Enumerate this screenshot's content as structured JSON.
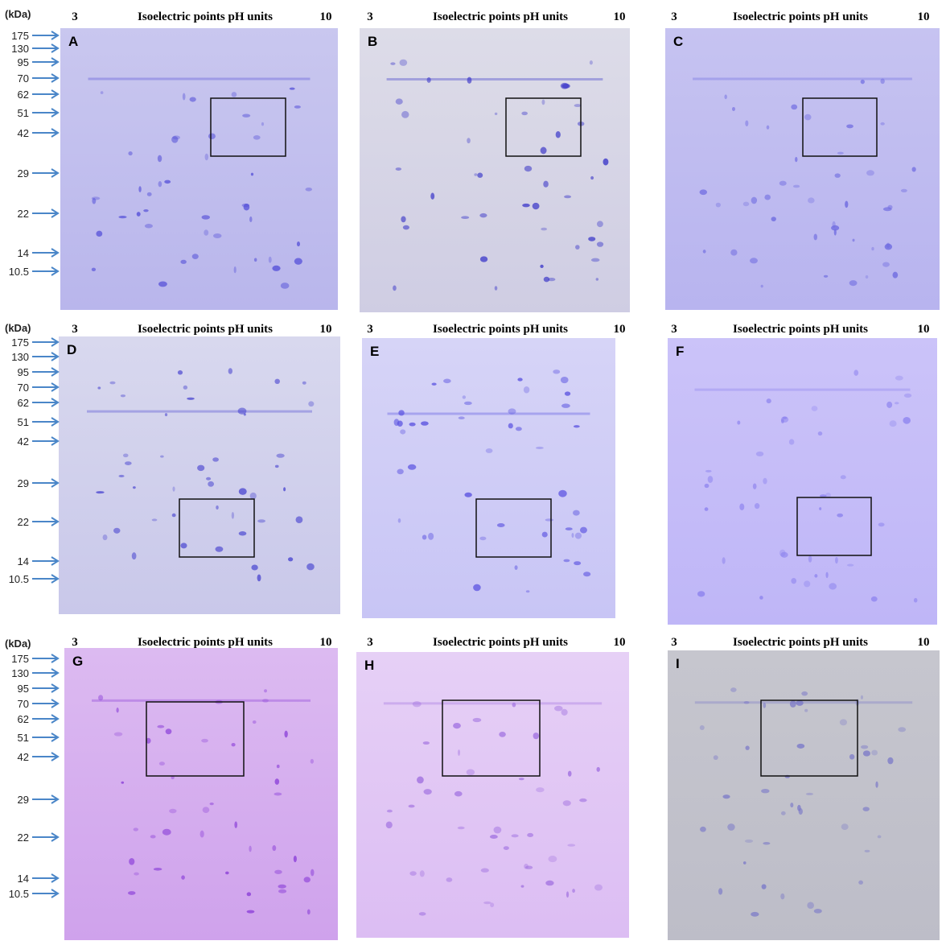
{
  "panels": [
    {
      "letter": "A",
      "ph_low": "3",
      "title": "Isoelectric points pH units",
      "ph_high": "10"
    },
    {
      "letter": "B",
      "ph_low": "3",
      "title": "Isoelectric points pH units",
      "ph_high": "10"
    },
    {
      "letter": "C",
      "ph_low": "3",
      "title": "Isoelectric points pH units",
      "ph_high": "10"
    },
    {
      "letter": "D",
      "ph_low": "3",
      "title": "Isoelectric points pH units",
      "ph_high": "10"
    },
    {
      "letter": "E",
      "ph_low": "3",
      "title": "Isoelectric points pH units",
      "ph_high": "10"
    },
    {
      "letter": "F",
      "ph_low": "3",
      "title": "Isoelectric points pH units",
      "ph_high": "10"
    },
    {
      "letter": "G",
      "ph_low": "3",
      "title": "Isoelectric points pH units",
      "ph_high": "10"
    },
    {
      "letter": "H",
      "ph_low": "3",
      "title": "Isoelectric points pH units",
      "ph_high": "10"
    },
    {
      "letter": "I",
      "ph_low": "3",
      "title": "Isoelectric points pH units",
      "ph_high": "10"
    }
  ],
  "marker_rows": [
    {
      "unit": "(kDa)",
      "labels": [
        "175",
        "130",
        "95",
        "70",
        "62",
        "51",
        "42",
        "29",
        "22",
        "14",
        "10.5"
      ]
    },
    {
      "unit": "(kDa)",
      "labels": [
        "175",
        "130",
        "95",
        "70",
        "62",
        "51",
        "42",
        "29",
        "22",
        "14",
        "10.5"
      ]
    },
    {
      "unit": "(kDa)",
      "labels": [
        "175",
        "130",
        "95",
        "70",
        "62",
        "51",
        "42",
        "29",
        "22",
        "14",
        "10.5"
      ]
    }
  ]
}
